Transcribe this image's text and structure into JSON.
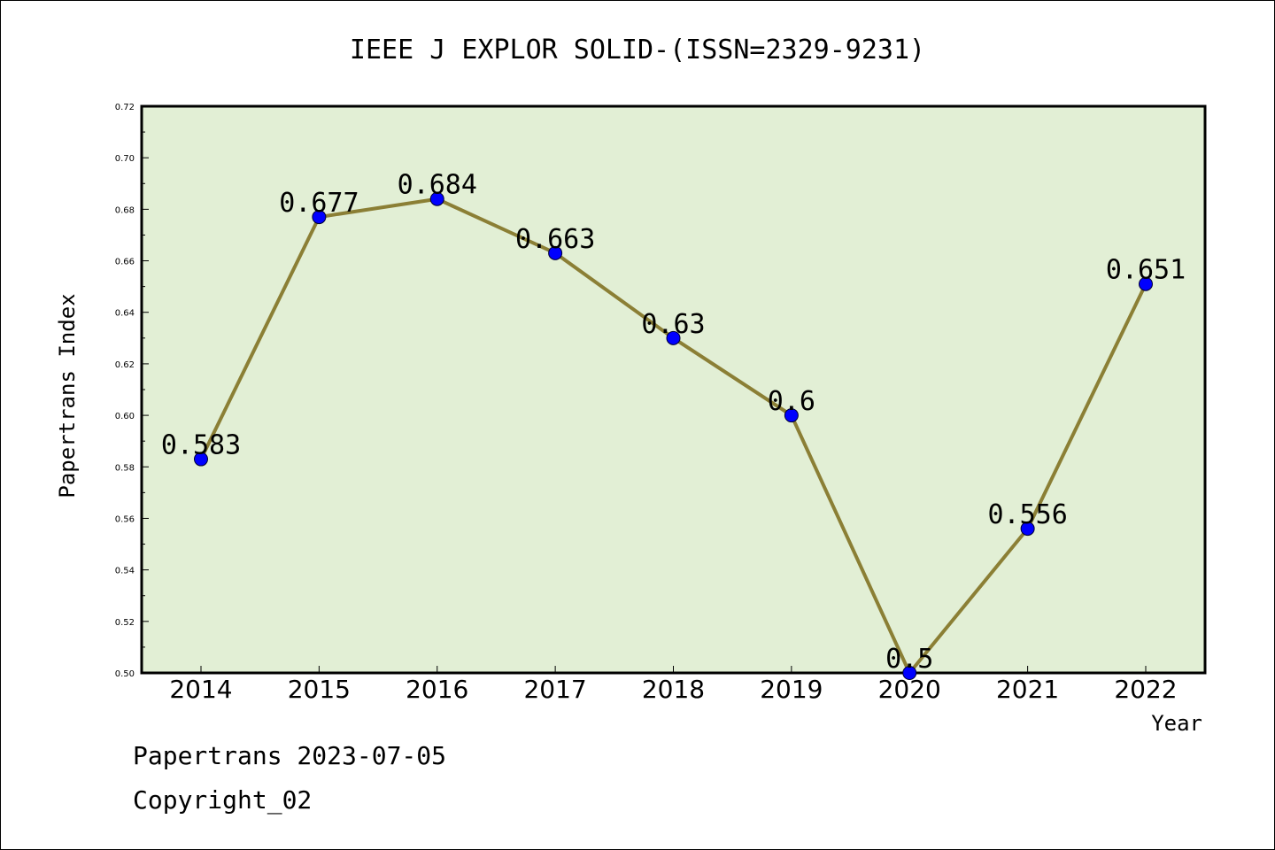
{
  "chart_data": {
    "type": "line",
    "title": "IEEE J EXPLOR SOLID-(ISSN=2329-9231)",
    "xlabel": "Year",
    "ylabel": "Papertrans Index",
    "categories": [
      "2014",
      "2015",
      "2016",
      "2017",
      "2018",
      "2019",
      "2020",
      "2021",
      "2022"
    ],
    "series": [
      {
        "values": [
          0.583,
          0.677,
          0.684,
          0.663,
          0.63,
          0.6,
          0.5,
          0.556,
          0.651
        ],
        "data_labels": [
          "0.583",
          "0.677",
          "0.684",
          "0.663",
          "0.63",
          "0.6",
          "0.5",
          "0.556",
          "0.651"
        ]
      }
    ],
    "ylim": [
      0.5,
      0.72
    ],
    "yticks": [
      "0.50",
      "0.52",
      "0.54",
      "0.56",
      "0.58",
      "0.60",
      "0.62",
      "0.64",
      "0.66",
      "0.68",
      "0.70",
      "0.72"
    ],
    "grid": false,
    "colors": {
      "plot_background": "#e2efd5",
      "line": "#8b7f35",
      "marker": "#0000ff"
    }
  },
  "footer": {
    "line1": "Papertrans 2023-07-05",
    "line2": "Copyright_02"
  }
}
